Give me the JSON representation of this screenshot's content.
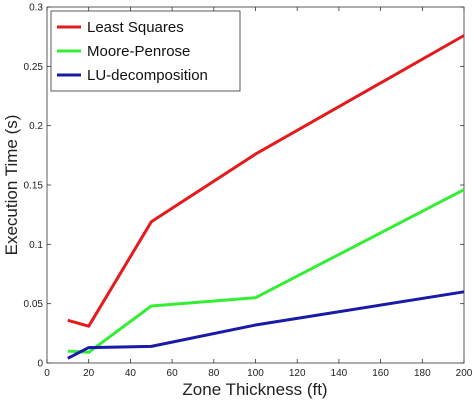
{
  "chart_data": {
    "type": "line",
    "xlabel": "Zone Thickness (ft)",
    "ylabel": "Execution Time (s)",
    "xlim": [
      0,
      200
    ],
    "ylim": [
      0,
      0.3
    ],
    "xticks": [
      0,
      20,
      40,
      60,
      80,
      100,
      120,
      140,
      160,
      180,
      200
    ],
    "yticks": [
      0,
      0.05,
      0.1,
      0.15,
      0.2,
      0.25,
      0.3
    ],
    "ytick_labels": [
      "0",
      "0.05",
      "0.1",
      "0.15",
      "0.2",
      "0.25",
      "0.3"
    ],
    "grid": false,
    "legend_position": "top-left",
    "series": [
      {
        "name": "Least Squares",
        "color": "#e41a1c",
        "x": [
          10,
          20,
          50,
          100,
          200
        ],
        "y": [
          0.036,
          0.031,
          0.119,
          0.176,
          0.276
        ]
      },
      {
        "name": "Moore-Penrose",
        "color": "#33ee33",
        "x": [
          10,
          20,
          50,
          100,
          200
        ],
        "y": [
          0.01,
          0.009,
          0.048,
          0.055,
          0.146
        ]
      },
      {
        "name": "LU-decomposition",
        "color": "#1a1aa8",
        "x": [
          10,
          20,
          50,
          100,
          200
        ],
        "y": [
          0.004,
          0.013,
          0.014,
          0.032,
          0.06
        ]
      }
    ]
  }
}
